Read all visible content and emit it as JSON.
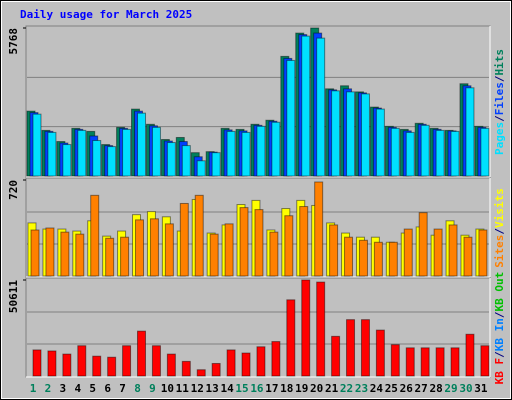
{
  "legend_separator": "/",
  "chart_data": [
    {
      "type": "bar",
      "title": "Daily usage for March 2025",
      "ylim": [
        0,
        5768
      ],
      "yticks": [
        5768
      ],
      "grid": true,
      "series": [
        {
          "name": "Hits",
          "color": "#00805c",
          "values": [
            2528,
            1778,
            1343,
            1857,
            1738,
            1225,
            1896,
            2607,
            2015,
            1422,
            1501,
            909,
            948,
            1857,
            1817,
            2015,
            2173,
            4662,
            5570,
            5768,
            3398,
            3516,
            3279,
            2686,
            1936,
            1817,
            2054,
            1857,
            1778,
            3595,
            1936
          ]
        },
        {
          "name": "Files",
          "color": "#0040ff",
          "values": [
            2470,
            1740,
            1285,
            1818,
            1560,
            1185,
            1856,
            2528,
            1956,
            1363,
            1343,
            750,
            930,
            1798,
            1758,
            1975,
            2134,
            4583,
            5511,
            5570,
            3358,
            3397,
            3240,
            2647,
            1896,
            1758,
            2015,
            1818,
            1758,
            3516,
            1896
          ]
        },
        {
          "name": "Pages",
          "color": "#00e0ff",
          "values": [
            2410,
            1699,
            1225,
            1778,
            1383,
            1146,
            1817,
            2449,
            1896,
            1304,
            1185,
            593,
            909,
            1738,
            1699,
            1936,
            2094,
            4504,
            5452,
            5373,
            3319,
            3279,
            3200,
            2608,
            1857,
            1699,
            1975,
            1778,
            1738,
            3437,
            1857
          ]
        }
      ]
    },
    {
      "type": "bar",
      "ylim": [
        0,
        720
      ],
      "yticks": [
        720
      ],
      "grid": true,
      "series": [
        {
          "name": "Visits",
          "color": "#ffff00",
          "values": [
            398,
            352,
            352,
            337,
            414,
            299,
            337,
            460,
            483,
            444,
            337,
            574,
            322,
            383,
            536,
            567,
            345,
            506,
            567,
            529,
            398,
            322,
            291,
            291,
            253,
            322,
            368,
            306,
            414,
            306,
            352
          ]
        },
        {
          "name": "Sites",
          "color": "#ff8000",
          "values": [
            345,
            360,
            329,
            314,
            605,
            283,
            291,
            421,
            429,
            391,
            544,
            605,
            314,
            391,
            513,
            498,
            329,
            452,
            521,
            705,
            383,
            291,
            268,
            253,
            253,
            352,
            475,
            352,
            383,
            291,
            345
          ]
        }
      ]
    },
    {
      "type": "bar",
      "ylim": [
        0,
        50611
      ],
      "yticks": [
        50611
      ],
      "grid": true,
      "categories": [
        "1",
        "2",
        "3",
        "4",
        "5",
        "6",
        "7",
        "8",
        "9",
        "10",
        "11",
        "12",
        "13",
        "14",
        "15",
        "16",
        "17",
        "18",
        "19",
        "20",
        "21",
        "22",
        "23",
        "24",
        "25",
        "26",
        "27",
        "28",
        "29",
        "30",
        "31"
      ],
      "category_colors": [
        "#00805c",
        "#00805c",
        "#000000",
        "#000000",
        "#000000",
        "#000000",
        "#000000",
        "#00805c",
        "#00805c",
        "#000000",
        "#000000",
        "#000000",
        "#000000",
        "#000000",
        "#00805c",
        "#00805c",
        "#000000",
        "#000000",
        "#000000",
        "#000000",
        "#000000",
        "#00805c",
        "#00805c",
        "#000000",
        "#000000",
        "#000000",
        "#000000",
        "#000000",
        "#00805c",
        "#00805c",
        "#000000"
      ],
      "series": [
        {
          "name": "KB Out",
          "color": "#00c000",
          "values": [
            0,
            0,
            0,
            0,
            0,
            0,
            0,
            0,
            0,
            0,
            0,
            0,
            0,
            0,
            0,
            0,
            0,
            0,
            0,
            0,
            0,
            0,
            0,
            0,
            0,
            0,
            0,
            0,
            0,
            0,
            0
          ]
        },
        {
          "name": "KB In",
          "color": "#0080ff",
          "values": [
            0,
            0,
            0,
            0,
            0,
            0,
            0,
            0,
            0,
            0,
            0,
            0,
            0,
            0,
            0,
            0,
            0,
            0,
            0,
            0,
            0,
            0,
            0,
            0,
            0,
            0,
            0,
            0,
            0,
            0,
            0
          ]
        },
        {
          "name": "KB F",
          "color": "#ff0000",
          "values": [
            13753,
            13203,
            11553,
            15954,
            10452,
            9902,
            15954,
            23655,
            15954,
            11553,
            7702,
            3301,
            6601,
            13753,
            12103,
            15403,
            18154,
            40159,
            50611,
            49511,
            20905,
            29707,
            29707,
            24205,
            16504,
            14853,
            14853,
            14853,
            14853,
            22005,
            15954
          ]
        }
      ]
    }
  ]
}
